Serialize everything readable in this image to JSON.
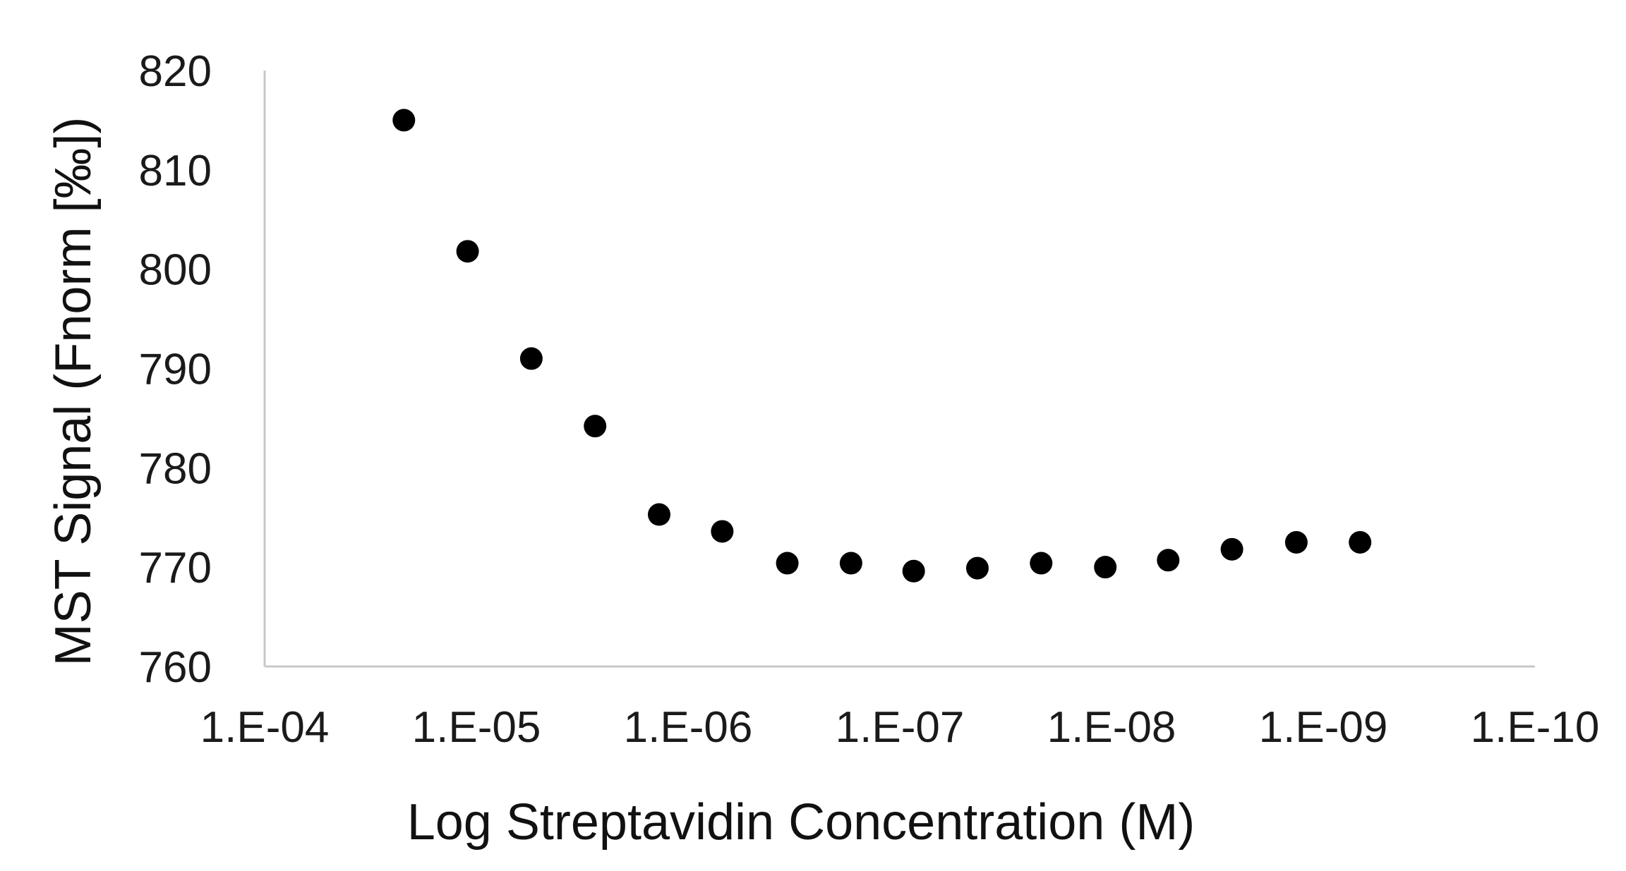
{
  "chart_data": {
    "type": "scatter",
    "title": "",
    "xlabel": "Log Streptavidin Concentration (M)",
    "ylabel": "MST Signal (Fnorm [‰])",
    "x_scale": "log",
    "x_reversed": true,
    "xlim": [
      0.0001,
      1e-10
    ],
    "ylim": [
      760,
      820
    ],
    "x_ticks": [
      0.0001,
      1e-05,
      1e-06,
      1e-07,
      1e-08,
      1e-09,
      1e-10
    ],
    "x_tick_labels": [
      "1.E-04",
      "1.E-05",
      "1.E-06",
      "1.E-07",
      "1.E-08",
      "1.E-09",
      "1.E-10"
    ],
    "y_ticks": [
      760,
      770,
      780,
      790,
      800,
      810,
      820
    ],
    "y_tick_labels": [
      "760",
      "770",
      "780",
      "790",
      "800",
      "810",
      "820"
    ],
    "grid": false,
    "legend": "none",
    "marker_color": "#000000",
    "axis_color": "#c8c8c8",
    "series": [
      {
        "x": [
          2.2e-05,
          1.1e-05,
          5.5e-06,
          2.75e-06,
          1.37e-06,
          6.9e-07,
          3.4e-07,
          1.7e-07,
          8.6e-08,
          4.3e-08,
          2.15e-08,
          1.07e-08,
          5.4e-09,
          2.7e-09,
          1.34e-09,
          6.7e-10
        ],
        "y": [
          815.0,
          801.8,
          791.0,
          784.2,
          775.3,
          773.6,
          770.4,
          770.4,
          769.6,
          769.9,
          770.4,
          770.0,
          770.7,
          771.8,
          772.5,
          772.5
        ],
        "error": [
          0.3,
          0.5,
          0.4,
          0.6,
          0.4,
          0.5,
          0.4,
          0.4,
          0.4,
          0.4,
          0.4,
          0.4,
          0.4,
          0.4,
          0.5,
          0.4
        ]
      }
    ]
  }
}
